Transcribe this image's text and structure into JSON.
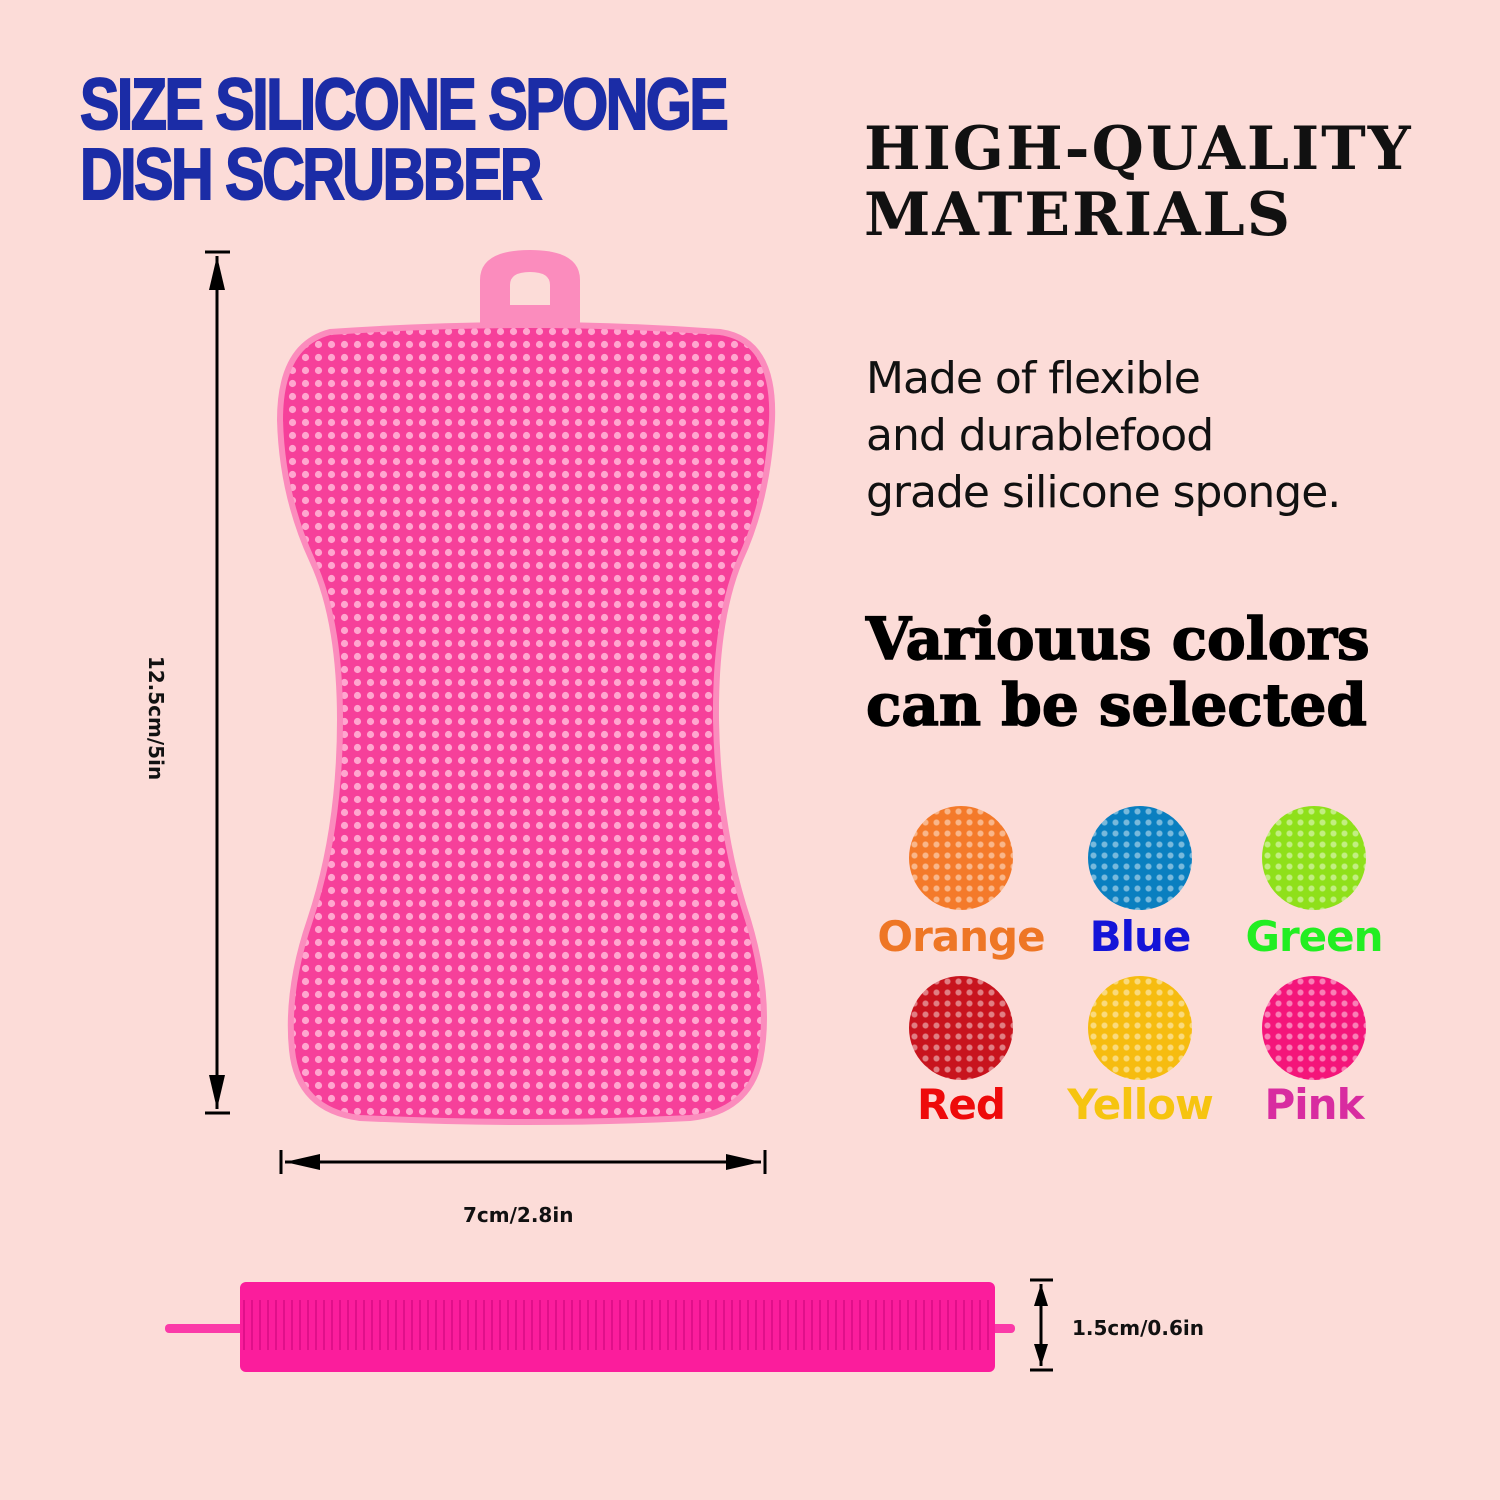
{
  "title": {
    "line1": "SIZE SILICONE SPONGE",
    "line2": "DISH SCRUBBER"
  },
  "heading": {
    "line1": "HIGH-QUALITY",
    "line2": "MATERIALS"
  },
  "description": {
    "line1": "Made of flexible",
    "line2": "and durablefood",
    "line3": "grade silicone sponge."
  },
  "colors_heading": {
    "line1": "Variouus colors",
    "line2": "can be selected"
  },
  "colors": [
    {
      "label": "Orange",
      "swatch": "#f47a2a",
      "text": "#ee7625"
    },
    {
      "label": "Blue",
      "swatch": "#0a7fc0",
      "text": "#1414d8"
    },
    {
      "label": "Green",
      "swatch": "#8fe01a",
      "text": "#22ee22"
    },
    {
      "label": "Red",
      "swatch": "#c8141e",
      "text": "#ee0a0a"
    },
    {
      "label": "Yellow",
      "swatch": "#f6bc10",
      "text": "#f6c410"
    },
    {
      "label": "Pink",
      "swatch": "#f4157a",
      "text": "#d82ca0"
    }
  ],
  "dimensions": {
    "height": "12.5cm/5in",
    "width": "7cm/2.8in",
    "thickness": "1.5cm/0.6in"
  },
  "product_color": "#fb5aa8"
}
